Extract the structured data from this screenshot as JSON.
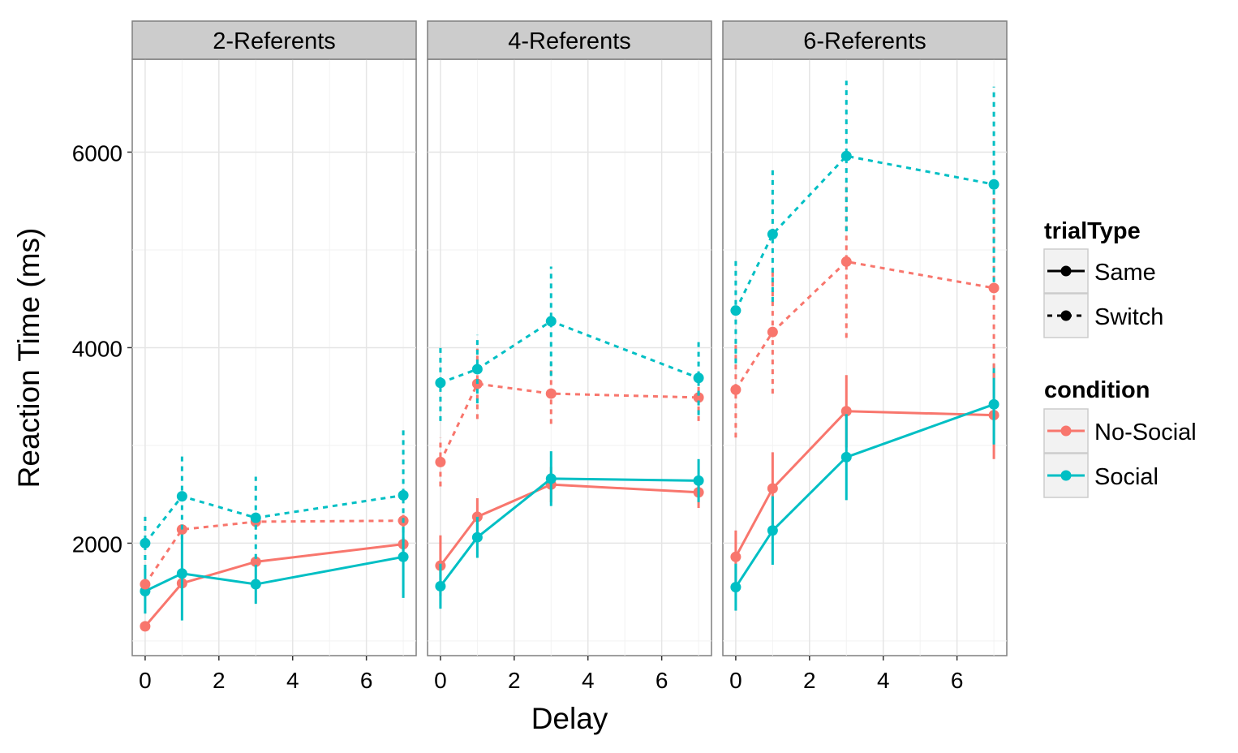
{
  "chart_data": {
    "type": "line",
    "xlabel": "Delay",
    "ylabel": "Reaction Time (ms)",
    "x_ticks": [
      0,
      2,
      4,
      6
    ],
    "y_ticks": [
      2000,
      4000,
      6000
    ],
    "xlim": [
      -0.35,
      7.35
    ],
    "ylim": [
      850,
      6950
    ],
    "grid": true,
    "colors": {
      "No-Social": "#F8766D",
      "Social": "#00BFC4"
    },
    "legend_position": "right",
    "legend": {
      "trialType": {
        "title": "trialType",
        "items": [
          "Same",
          "Switch"
        ]
      },
      "condition": {
        "title": "condition",
        "items": [
          "No-Social",
          "Social"
        ]
      }
    },
    "x": [
      0,
      1,
      3,
      7
    ],
    "panels": [
      {
        "title": "2-Referents",
        "series": [
          {
            "condition": "No-Social",
            "trialType": "Same",
            "y": [
              1150,
              1590,
              1810,
              1990
            ],
            "err": [
              50,
              30,
              50,
              60
            ]
          },
          {
            "condition": "Social",
            "trialType": "Same",
            "y": [
              1510,
              1690,
              1580,
              1860
            ],
            "err": [
              230,
              480,
              200,
              420
            ]
          },
          {
            "condition": "No-Social",
            "trialType": "Switch",
            "y": [
              1580,
              2140,
              2220,
              2230
            ],
            "err": [
              40,
              50,
              60,
              60
            ]
          },
          {
            "condition": "Social",
            "trialType": "Switch",
            "y": [
              2000,
              2480,
              2260,
              2490
            ],
            "err": [
              270,
              440,
              420,
              680
            ]
          }
        ]
      },
      {
        "title": "4-Referents",
        "series": [
          {
            "condition": "No-Social",
            "trialType": "Same",
            "y": [
              1770,
              2270,
              2600,
              2520
            ],
            "err": [
              310,
              190,
              180,
              160
            ]
          },
          {
            "condition": "Social",
            "trialType": "Same",
            "y": [
              1560,
              2060,
              2660,
              2640
            ],
            "err": [
              230,
              210,
              280,
              220
            ]
          },
          {
            "condition": "No-Social",
            "trialType": "Switch",
            "y": [
              2830,
              3630,
              3530,
              3490
            ],
            "err": [
              250,
              360,
              310,
              240
            ]
          },
          {
            "condition": "Social",
            "trialType": "Switch",
            "y": [
              3640,
              3780,
              4270,
              3690
            ],
            "err": [
              390,
              350,
              560,
              380
            ]
          }
        ]
      },
      {
        "title": "6-Referents",
        "series": [
          {
            "condition": "No-Social",
            "trialType": "Same",
            "y": [
              1860,
              2560,
              3350,
              3310
            ],
            "err": [
              270,
              370,
              370,
              450
            ]
          },
          {
            "condition": "Social",
            "trialType": "Same",
            "y": [
              1550,
              2130,
              2880,
              3420
            ],
            "err": [
              240,
              350,
              440,
              410
            ]
          },
          {
            "condition": "No-Social",
            "trialType": "Switch",
            "y": [
              3570,
              4160,
              4880,
              4610
            ],
            "err": [
              490,
              630,
              780,
              920
            ]
          },
          {
            "condition": "Social",
            "trialType": "Switch",
            "y": [
              4380,
              5160,
              5960,
              5670
            ],
            "err": [
              540,
              690,
              770,
              1000
            ]
          }
        ]
      }
    ]
  }
}
